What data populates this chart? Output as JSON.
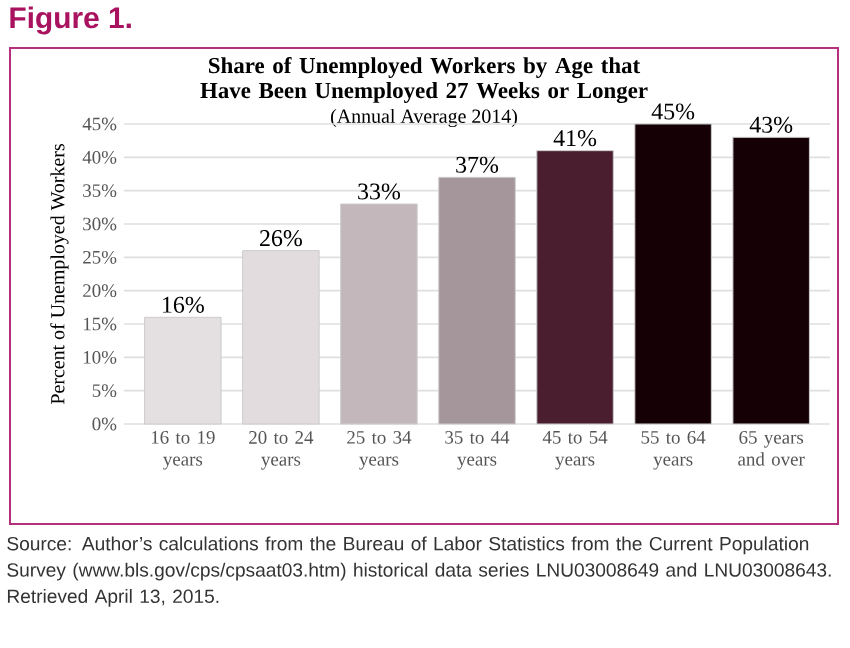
{
  "chart_data": {
    "type": "bar",
    "title": "Share of Unemployed Workers by Age that Have Been Unemployed 27 Weeks or Longer",
    "subtitle": "(Annual Average 2014)",
    "ylabel": "Percent of Unemployed Workers",
    "categories": [
      "16 to 19 years",
      "20 to 24 years",
      "25 to 34 years",
      "35 to 44 years",
      "45 to 54 years",
      "55 to 64 years",
      "65 years and over"
    ],
    "values": [
      16,
      26,
      33,
      37,
      41,
      45,
      43
    ],
    "value_labels": [
      "16%",
      "26%",
      "33%",
      "37%",
      "41%",
      "45%",
      "43%"
    ],
    "colors": [
      "#e4dfe1",
      "#e2dcdf",
      "#c3b7bb",
      "#a4969b",
      "#4a1e2e",
      "#140005",
      "#140005"
    ],
    "ylim": [
      0,
      45
    ],
    "yticks": [
      {
        "value": 0,
        "label": "0%"
      },
      {
        "value": 5,
        "label": "5%"
      },
      {
        "value": 10,
        "label": "10%"
      },
      {
        "value": 15,
        "label": "15%"
      },
      {
        "value": 20,
        "label": "20%"
      },
      {
        "value": 25,
        "label": "25%"
      },
      {
        "value": 30,
        "label": "30%"
      },
      {
        "value": 35,
        "label": "35%"
      },
      {
        "value": 40,
        "label": "40%"
      },
      {
        "value": 45,
        "label": "45%"
      }
    ],
    "grid": "y",
    "annotations": [
      "Figure 1.",
      "Source: Author’s calculations from the Bureau of Labor Statistics from the Current Population Survey (www.bls.gov/cps/cpsaat03.htm) historical data series LNU03008649 and LNU03008643. Retrieved April 13, 2015."
    ]
  }
}
